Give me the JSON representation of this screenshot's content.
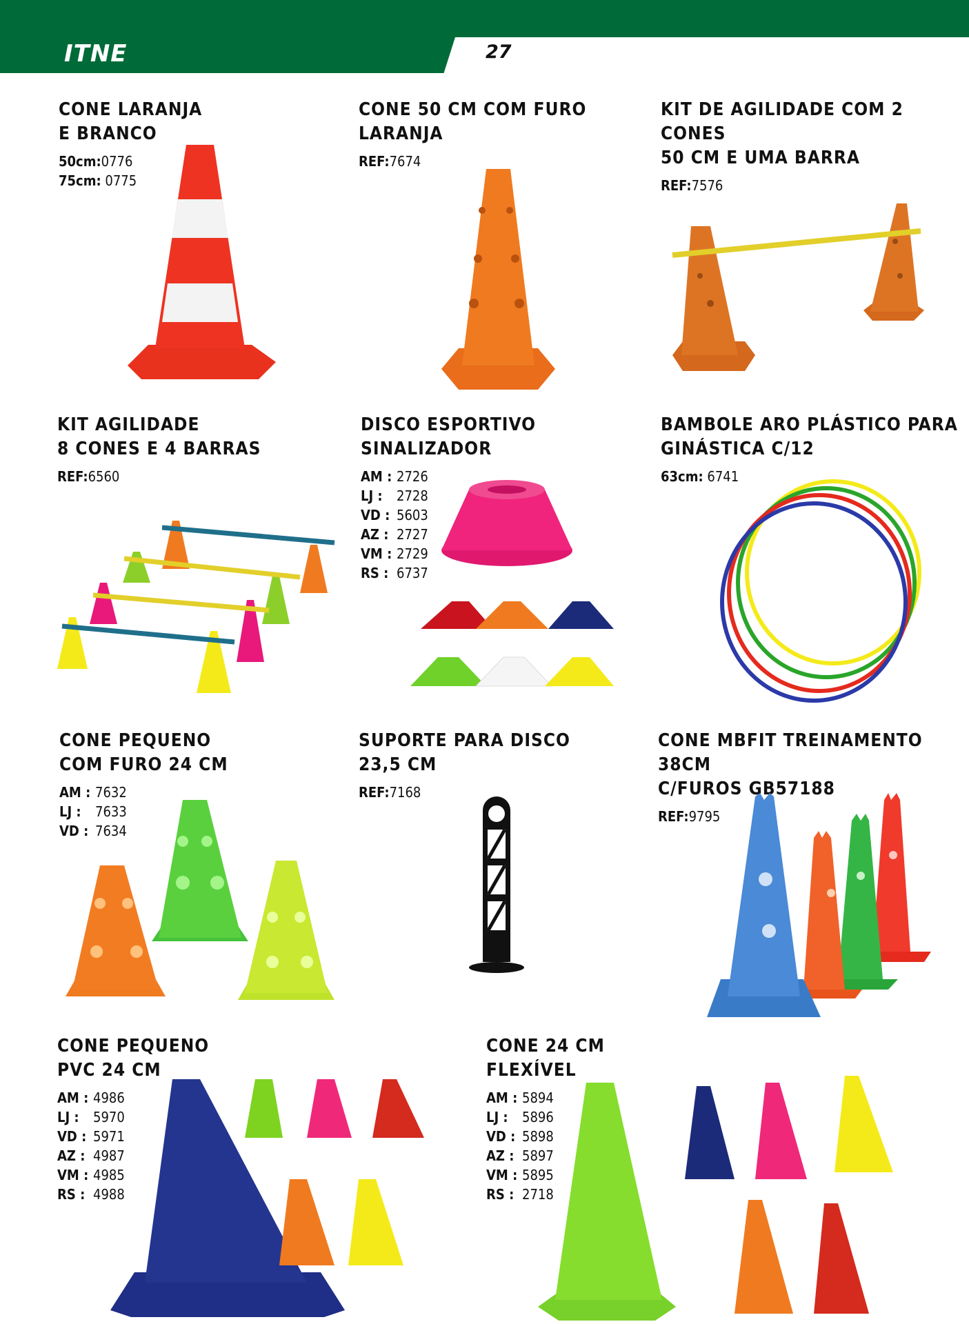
{
  "header": {
    "brand": "ITNE",
    "page_number": "27"
  },
  "products": [
    {
      "id": "p1",
      "title": "CONE LARANJA\nE BRANCO",
      "codes": [
        {
          "k": "50cm:",
          "v": "0776"
        },
        {
          "k": "75cm:",
          "v": "0775"
        }
      ]
    },
    {
      "id": "p2",
      "title": "CONE 50 CM COM FURO\nLARANJA",
      "codes": [
        {
          "k": "REF:",
          "v": "7674"
        }
      ]
    },
    {
      "id": "p3",
      "title": "KIT DE AGILIDADE COM 2 CONES\n50 CM E UMA BARRA",
      "codes": [
        {
          "k": "REF:",
          "v": "7576"
        }
      ]
    },
    {
      "id": "p4",
      "title": "KIT AGILIDADE\n8 CONES E 4 BARRAS",
      "codes": [
        {
          "k": "REF:",
          "v": "6560"
        }
      ]
    },
    {
      "id": "p5",
      "title": "DISCO ESPORTIVO\nSINALIZADOR",
      "codes": [
        {
          "k": "AM :",
          "v": "2726"
        },
        {
          "k": "LJ  :",
          "v": "2728"
        },
        {
          "k": "VD  :",
          "v": "5603"
        },
        {
          "k": "AZ  :",
          "v": "2727"
        },
        {
          "k": "VM :",
          "v": "2729"
        },
        {
          "k": "RS  :",
          "v": "6737"
        }
      ]
    },
    {
      "id": "p6",
      "title": "BAMBOLE ARO PLÁSTICO PARA\nGINÁSTICA C/12",
      "codes": [
        {
          "k": "63cm:",
          "v": "6741"
        }
      ]
    },
    {
      "id": "p7",
      "title": "CONE PEQUENO\nCOM FURO 24 CM",
      "codes": [
        {
          "k": "AM :",
          "v": "7632"
        },
        {
          "k": "LJ  :",
          "v": "7633"
        },
        {
          "k": "VD  :",
          "v": "7634"
        }
      ]
    },
    {
      "id": "p8",
      "title": "SUPORTE PARA DISCO\n23,5 CM",
      "codes": [
        {
          "k": "REF:",
          "v": "7168"
        }
      ]
    },
    {
      "id": "p9",
      "title": "CONE MBFIT TREINAMENTO 38CM\nC/FUROS GB57188",
      "codes": [
        {
          "k": "REF:",
          "v": "9795"
        }
      ]
    },
    {
      "id": "p10",
      "title": "CONE PEQUENO\nPVC 24 CM",
      "codes": [
        {
          "k": "AM :",
          "v": "4986"
        },
        {
          "k": "LJ  :",
          "v": "5970"
        },
        {
          "k": "VD  :",
          "v": "5971"
        },
        {
          "k": "AZ  :",
          "v": "4987"
        },
        {
          "k": "VM :",
          "v": "4985"
        },
        {
          "k": "RS  :",
          "v": "4988"
        }
      ]
    },
    {
      "id": "p11",
      "title": "CONE 24 CM\nFLEXÍVEL",
      "codes": [
        {
          "k": "AM :",
          "v": "5894"
        },
        {
          "k": "LJ  :",
          "v": "5896"
        },
        {
          "k": "VD  :",
          "v": "5898"
        },
        {
          "k": "AZ  :",
          "v": "5897"
        },
        {
          "k": "VM :",
          "v": "5895"
        },
        {
          "k": "RS  :",
          "v": "2718"
        }
      ]
    }
  ],
  "colors": {
    "green": "#006b38",
    "orange": "#f07a20",
    "red": "#e52a1e",
    "blue": "#3a7bc8",
    "navy": "#1c2a7a",
    "yellow": "#f4ea1a",
    "lime": "#b5e22a",
    "pink": "#e8197a"
  }
}
